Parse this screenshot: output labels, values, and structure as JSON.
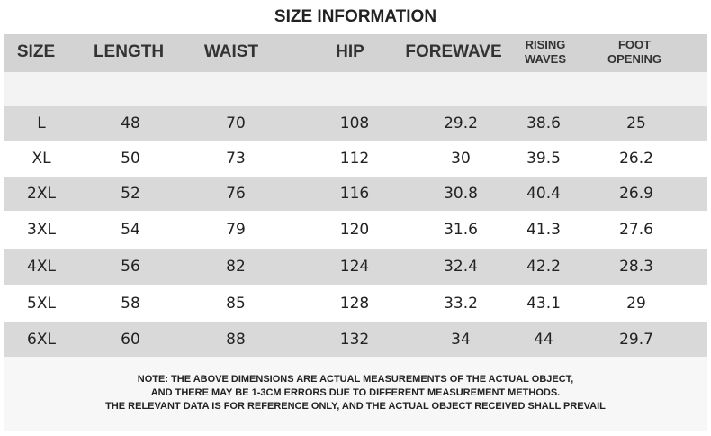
{
  "title": "SIZE INFORMATION",
  "table": {
    "header": [
      "SIZE",
      "LENGTH",
      "WAIST",
      "HIP",
      "FOREWAVE",
      "RISING WAVES",
      "FOOT OPENING"
    ],
    "rows": [
      [
        "L",
        "48",
        "70",
        "108",
        "29.2",
        "38.6",
        "25"
      ],
      [
        "XL",
        "50",
        "73",
        "112",
        "30",
        "39.5",
        "26.2"
      ],
      [
        "2XL",
        "52",
        "76",
        "116",
        "30.8",
        "40.4",
        "26.9"
      ],
      [
        "3XL",
        "54",
        "79",
        "120",
        "31.6",
        "41.3",
        "27.6"
      ],
      [
        "4XL",
        "56",
        "82",
        "124",
        "32.4",
        "42.2",
        "28.3"
      ],
      [
        "5XL",
        "58",
        "85",
        "128",
        "33.2",
        "43.1",
        "29"
      ],
      [
        "6XL",
        "60",
        "88",
        "132",
        "34",
        "44",
        "29.7"
      ]
    ]
  },
  "note": [
    "NOTE: THE ABOVE DIMENSIONS ARE ACTUAL MEASUREMENTS OF THE ACTUAL OBJECT,",
    "AND THERE MAY BE 1-3CM ERRORS DUE TO DIFFERENT MEASUREMENT METHODS.",
    "THE RELEVANT DATA IS FOR REFERENCE ONLY, AND THE ACTUAL OBJECT RECEIVED SHALL PREVAIL"
  ]
}
